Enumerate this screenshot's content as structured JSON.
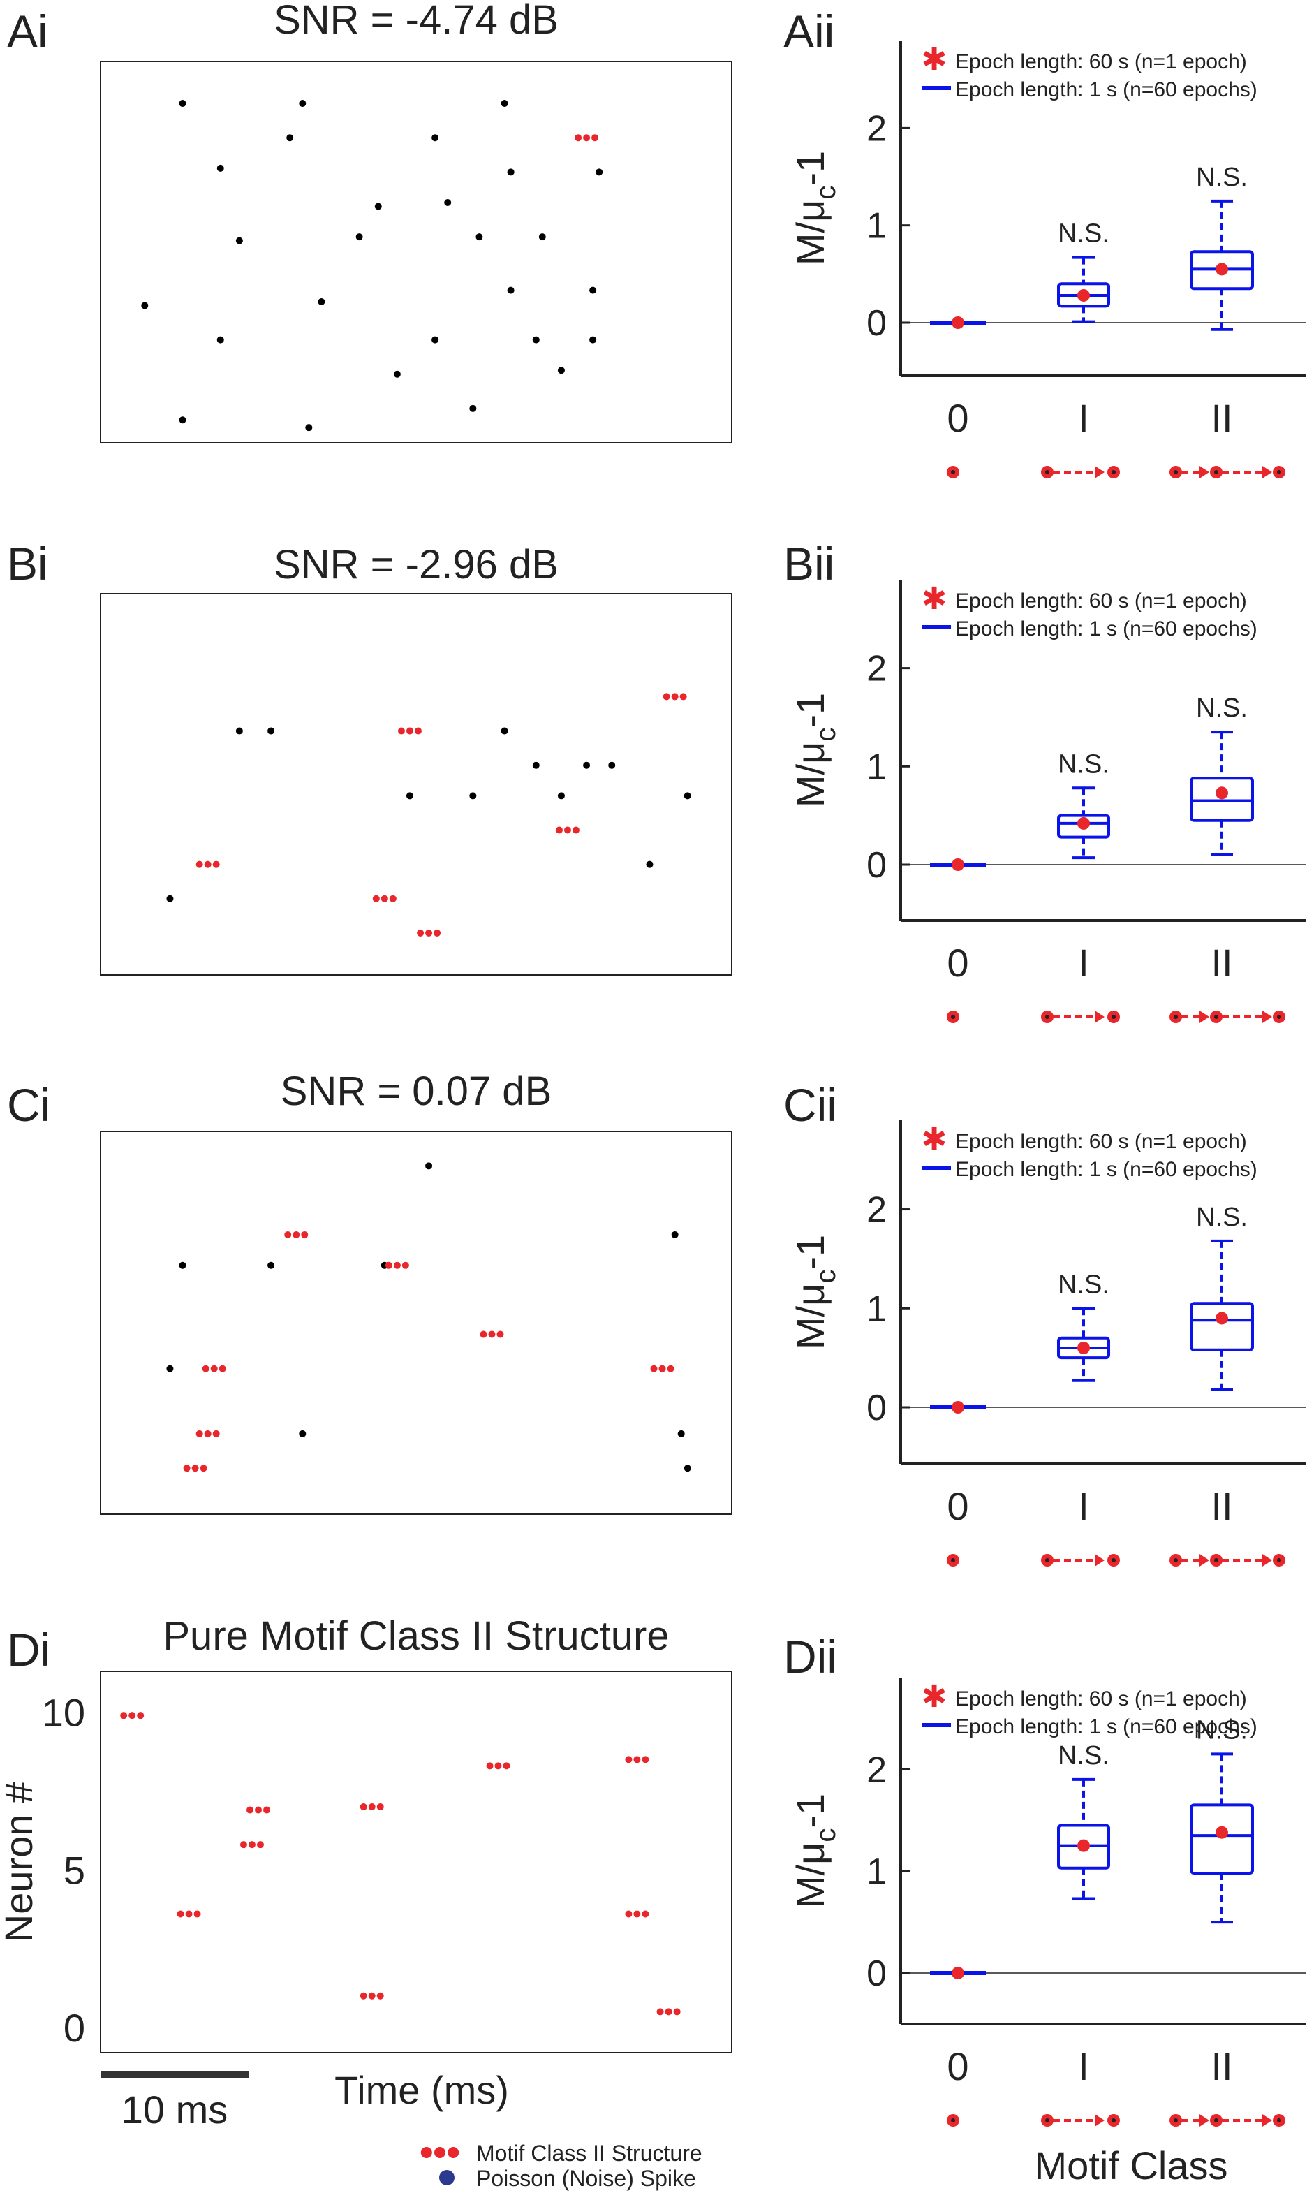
{
  "panel_labels": [
    "Ai",
    "Aii",
    "Bi",
    "Bii",
    "Ci",
    "Cii",
    "Di",
    "Dii"
  ],
  "chart_data": [
    {
      "panel": "Ai",
      "type": "scatter",
      "title": "SNR = -4.74 dB",
      "xlim": [
        0,
        1
      ],
      "ylim": [
        0,
        1
      ],
      "noise_spikes": [
        [
          0.07,
          0.36
        ],
        [
          0.13,
          0.89
        ],
        [
          0.13,
          0.06
        ],
        [
          0.19,
          0.72
        ],
        [
          0.22,
          0.53
        ],
        [
          0.19,
          0.27
        ],
        [
          0.32,
          0.89
        ],
        [
          0.3,
          0.8
        ],
        [
          0.33,
          0.04
        ],
        [
          0.35,
          0.37
        ],
        [
          0.41,
          0.54
        ],
        [
          0.44,
          0.62
        ],
        [
          0.47,
          0.18
        ],
        [
          0.53,
          0.27
        ],
        [
          0.53,
          0.8
        ],
        [
          0.55,
          0.63
        ],
        [
          0.59,
          0.09
        ],
        [
          0.6,
          0.54
        ],
        [
          0.64,
          0.89
        ],
        [
          0.65,
          0.71
        ],
        [
          0.65,
          0.4
        ],
        [
          0.69,
          0.27
        ],
        [
          0.7,
          0.54
        ],
        [
          0.73,
          0.19
        ],
        [
          0.78,
          0.4
        ],
        [
          0.78,
          0.27
        ],
        [
          0.79,
          0.71
        ]
      ],
      "motif_structures": [
        [
          0.77,
          0.8
        ]
      ]
    },
    {
      "panel": "Bi",
      "type": "scatter",
      "title": "SNR = -2.96 dB",
      "xlim": [
        0,
        1
      ],
      "ylim": [
        0,
        1
      ],
      "noise_spikes": [
        [
          0.11,
          0.2
        ],
        [
          0.22,
          0.64
        ],
        [
          0.27,
          0.64
        ],
        [
          0.49,
          0.47
        ],
        [
          0.59,
          0.47
        ],
        [
          0.64,
          0.64
        ],
        [
          0.69,
          0.55
        ],
        [
          0.73,
          0.47
        ],
        [
          0.77,
          0.55
        ],
        [
          0.81,
          0.55
        ],
        [
          0.87,
          0.29
        ],
        [
          0.93,
          0.47
        ]
      ],
      "motif_structures": [
        [
          0.17,
          0.29
        ],
        [
          0.45,
          0.2
        ],
        [
          0.52,
          0.11
        ],
        [
          0.49,
          0.64
        ],
        [
          0.74,
          0.38
        ],
        [
          0.91,
          0.73
        ]
      ]
    },
    {
      "panel": "Ci",
      "type": "scatter",
      "title": "SNR = 0.07 dB",
      "xlim": [
        0,
        1
      ],
      "ylim": [
        0,
        1
      ],
      "noise_spikes": [
        [
          0.11,
          0.38
        ],
        [
          0.13,
          0.65
        ],
        [
          0.27,
          0.65
        ],
        [
          0.32,
          0.21
        ],
        [
          0.45,
          0.65
        ],
        [
          0.52,
          0.91
        ],
        [
          0.91,
          0.73
        ],
        [
          0.92,
          0.21
        ],
        [
          0.93,
          0.12
        ]
      ],
      "motif_structures": [
        [
          0.18,
          0.38
        ],
        [
          0.17,
          0.21
        ],
        [
          0.15,
          0.12
        ],
        [
          0.31,
          0.73
        ],
        [
          0.47,
          0.65
        ],
        [
          0.62,
          0.47
        ],
        [
          0.89,
          0.38
        ]
      ]
    },
    {
      "panel": "Di",
      "type": "scatter",
      "title": "Pure Motif Class II Structure",
      "ylabel": "Neuron #",
      "xlabel": "Time (ms)",
      "xlim": [
        0,
        1
      ],
      "ylim": [
        -0.8,
        11.3
      ],
      "yticks": [
        0,
        5,
        10
      ],
      "scalebar_label": "10 ms",
      "motif_structures": [
        [
          0.05,
          9.9
        ],
        [
          0.14,
          3.6
        ],
        [
          0.25,
          6.9
        ],
        [
          0.24,
          5.8
        ],
        [
          0.43,
          7.0
        ],
        [
          0.43,
          1.0
        ],
        [
          0.63,
          8.3
        ],
        [
          0.85,
          8.5
        ],
        [
          0.85,
          3.6
        ],
        [
          0.9,
          0.5
        ]
      ]
    },
    {
      "panel": "Aii",
      "type": "box",
      "ylabel_main": "M/",
      "ylabel_mu": "μ",
      "ylabel_sub": "c",
      "ylabel_tail": "-1",
      "ylim": [
        -0.5,
        2.5
      ],
      "yticks": [
        0,
        1,
        2
      ],
      "categories": [
        "0",
        "I",
        "II"
      ],
      "legend": [
        "Epoch length: 60 s (n=1 epoch)",
        "Epoch length: 1 s   (n=60 epochs)"
      ],
      "annotations": [
        "",
        "N.S.",
        "N.S."
      ],
      "boxes": [
        {
          "min": 0,
          "q1": 0,
          "median": 0,
          "q3": 0,
          "max": 0
        },
        {
          "min": 0.01,
          "q1": 0.17,
          "median": 0.28,
          "q3": 0.4,
          "max": 0.67
        },
        {
          "min": -0.07,
          "q1": 0.35,
          "median": 0.55,
          "q3": 0.73,
          "max": 1.25
        }
      ],
      "epoch60_values": [
        0,
        0.28,
        0.55
      ]
    },
    {
      "panel": "Bii",
      "type": "box",
      "ylabel_main": "M/",
      "ylabel_mu": "μ",
      "ylabel_sub": "c",
      "ylabel_tail": "-1",
      "ylim": [
        -0.5,
        2.5
      ],
      "yticks": [
        0,
        1,
        2
      ],
      "categories": [
        "0",
        "I",
        "II"
      ],
      "legend": [
        "Epoch length: 60 s (n=1 epoch)",
        "Epoch length: 1 s   (n=60 epochs)"
      ],
      "annotations": [
        "",
        "N.S.",
        "N.S."
      ],
      "boxes": [
        {
          "min": 0,
          "q1": 0,
          "median": 0,
          "q3": 0,
          "max": 0
        },
        {
          "min": 0.07,
          "q1": 0.28,
          "median": 0.42,
          "q3": 0.5,
          "max": 0.78
        },
        {
          "min": 0.1,
          "q1": 0.45,
          "median": 0.65,
          "q3": 0.88,
          "max": 1.35
        }
      ],
      "epoch60_values": [
        0,
        0.42,
        0.73
      ]
    },
    {
      "panel": "Cii",
      "type": "box",
      "ylabel_main": "M/",
      "ylabel_mu": "μ",
      "ylabel_sub": "c",
      "ylabel_tail": "-1",
      "ylim": [
        -0.5,
        2.5
      ],
      "yticks": [
        0,
        1,
        2
      ],
      "categories": [
        "0",
        "I",
        "II"
      ],
      "legend": [
        "Epoch length: 60 s (n=1 epoch)",
        "Epoch length: 1 s   (n=60 epochs)"
      ],
      "annotations": [
        "",
        "N.S.",
        "N.S."
      ],
      "boxes": [
        {
          "min": 0,
          "q1": 0,
          "median": 0,
          "q3": 0,
          "max": 0
        },
        {
          "min": 0.27,
          "q1": 0.5,
          "median": 0.6,
          "q3": 0.7,
          "max": 1.0
        },
        {
          "min": 0.18,
          "q1": 0.58,
          "median": 0.88,
          "q3": 1.05,
          "max": 1.68
        }
      ],
      "epoch60_values": [
        0,
        0.6,
        0.9
      ]
    },
    {
      "panel": "Dii",
      "type": "box",
      "ylabel_main": "M/",
      "ylabel_mu": "μ",
      "ylabel_sub": "c",
      "ylabel_tail": "-1",
      "xlabel": "Motif Class",
      "ylim": [
        -0.5,
        2.5
      ],
      "yticks": [
        0,
        1,
        2
      ],
      "categories": [
        "0",
        "I",
        "II"
      ],
      "legend": [
        "Epoch length: 60 s (n=1 epoch)",
        "Epoch length: 1 s   (n=60 epochs)"
      ],
      "annotations": [
        "",
        "N.S.",
        "N.S."
      ],
      "boxes": [
        {
          "min": 0,
          "q1": 0,
          "median": 0,
          "q3": 0,
          "max": 0
        },
        {
          "min": 0.73,
          "q1": 1.03,
          "median": 1.25,
          "q3": 1.45,
          "max": 1.9
        },
        {
          "min": 0.5,
          "q1": 0.98,
          "median": 1.35,
          "q3": 1.65,
          "max": 2.15
        }
      ],
      "epoch60_values": [
        0,
        1.25,
        1.38
      ]
    }
  ],
  "legend_bottom": {
    "motif": "Motif Class II Structure",
    "noise": "Poisson (Noise) Spike"
  },
  "colors": {
    "motif": "#e8262b",
    "box": "#0b14e8",
    "spike": "#000000",
    "noise_legend": "#2b3a8f"
  }
}
